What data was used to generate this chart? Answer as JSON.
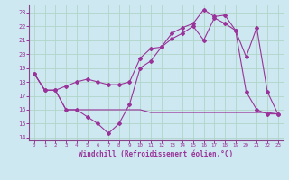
{
  "xlabel": "Windchill (Refroidissement éolien,°C)",
  "background_color": "#cde8f0",
  "grid_color": "#b0d4c8",
  "line_color": "#993399",
  "spine_color": "#884488",
  "xlim": [
    -0.5,
    23.5
  ],
  "ylim": [
    13.8,
    23.5
  ],
  "yticks": [
    14,
    15,
    16,
    17,
    18,
    19,
    20,
    21,
    22,
    23
  ],
  "xticks": [
    0,
    1,
    2,
    3,
    4,
    5,
    6,
    7,
    8,
    9,
    10,
    11,
    12,
    13,
    14,
    15,
    16,
    17,
    18,
    19,
    20,
    21,
    22,
    23
  ],
  "series1_x": [
    0,
    1,
    2,
    3,
    4,
    5,
    6,
    7,
    8,
    9,
    10,
    11,
    12,
    13,
    14,
    15,
    16,
    17,
    18,
    19,
    20,
    21,
    22,
    23
  ],
  "series1_y": [
    18.6,
    17.4,
    17.4,
    16.0,
    16.0,
    15.5,
    15.0,
    14.3,
    15.0,
    16.4,
    19.0,
    19.5,
    20.5,
    21.5,
    21.9,
    22.2,
    23.2,
    22.7,
    22.8,
    21.7,
    19.8,
    21.9,
    17.3,
    15.7
  ],
  "series2_x": [
    0,
    1,
    2,
    3,
    4,
    5,
    6,
    7,
    8,
    9,
    10,
    11,
    12,
    13,
    14,
    15,
    16,
    17,
    18,
    19,
    20,
    21,
    22,
    23
  ],
  "series2_y": [
    18.6,
    17.4,
    17.4,
    17.7,
    18.0,
    18.2,
    18.0,
    17.8,
    17.8,
    18.0,
    19.7,
    20.4,
    20.5,
    21.1,
    21.5,
    22.0,
    21.0,
    22.6,
    22.2,
    21.7,
    17.3,
    16.0,
    15.7,
    15.7
  ],
  "series3_x": [
    0,
    1,
    2,
    3,
    4,
    5,
    6,
    7,
    8,
    9,
    10,
    11,
    12,
    13,
    14,
    15,
    16,
    17,
    18,
    19,
    20,
    21,
    22,
    23
  ],
  "series3_y": [
    18.6,
    17.4,
    17.4,
    16.0,
    16.0,
    16.0,
    16.0,
    16.0,
    16.0,
    16.0,
    16.0,
    15.8,
    15.8,
    15.8,
    15.8,
    15.8,
    15.8,
    15.8,
    15.8,
    15.8,
    15.8,
    15.8,
    15.8,
    15.7
  ]
}
